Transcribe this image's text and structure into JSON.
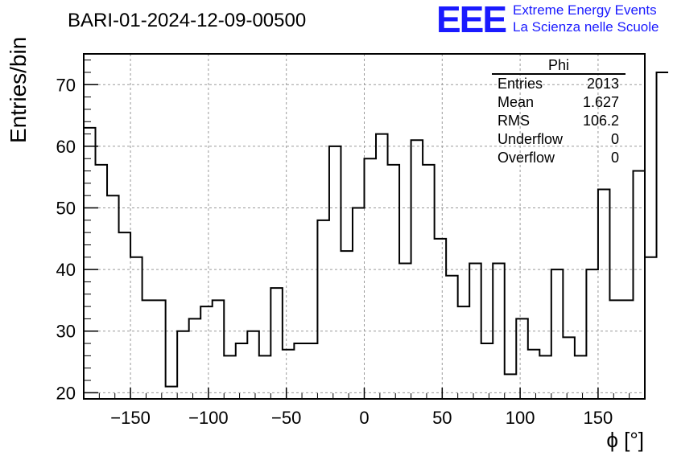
{
  "header": {
    "run_title": "BARI-01-2024-12-09-00500",
    "logo_mark": "EEE",
    "logo_line1": "Extreme Energy Events",
    "logo_line2": "La Scienza nelle Scuole"
  },
  "stats_box": {
    "title": "Phi",
    "rows": [
      {
        "label": "Entries",
        "value": "2013"
      },
      {
        "label": "Mean",
        "value": "1.627"
      },
      {
        "label": "RMS",
        "value": "106.2"
      },
      {
        "label": "Underflow",
        "value": "0"
      },
      {
        "label": "Overflow",
        "value": "0"
      }
    ]
  },
  "chart_data": {
    "type": "histogram",
    "title": "BARI-01-2024-12-09-00500",
    "xlabel": "ϕ [°]",
    "ylabel": "Entries/bin",
    "xlim": [
      -180,
      180
    ],
    "ylim": [
      19,
      75
    ],
    "bin_width": 7.5,
    "grid": true,
    "legend": "none",
    "x_ticks": [
      -150,
      -100,
      -50,
      0,
      50,
      100,
      150
    ],
    "x_tick_labels": [
      "−150",
      "−100",
      "−50",
      "0",
      "50",
      "100",
      "150"
    ],
    "y_ticks": [
      20,
      30,
      40,
      50,
      60,
      70
    ],
    "y_tick_labels": [
      "20",
      "30",
      "40",
      "50",
      "60",
      "70"
    ],
    "values": [
      63,
      57,
      52,
      46,
      42,
      35,
      35,
      21,
      30,
      32,
      34,
      35,
      26,
      28,
      30,
      26,
      37,
      27,
      28,
      28,
      48,
      60,
      43,
      50,
      58,
      62,
      57,
      41,
      61,
      57,
      45,
      39,
      34,
      41,
      28,
      41,
      23,
      32,
      27,
      26,
      40,
      29,
      26,
      40,
      53,
      35,
      35,
      56,
      42,
      72
    ]
  }
}
